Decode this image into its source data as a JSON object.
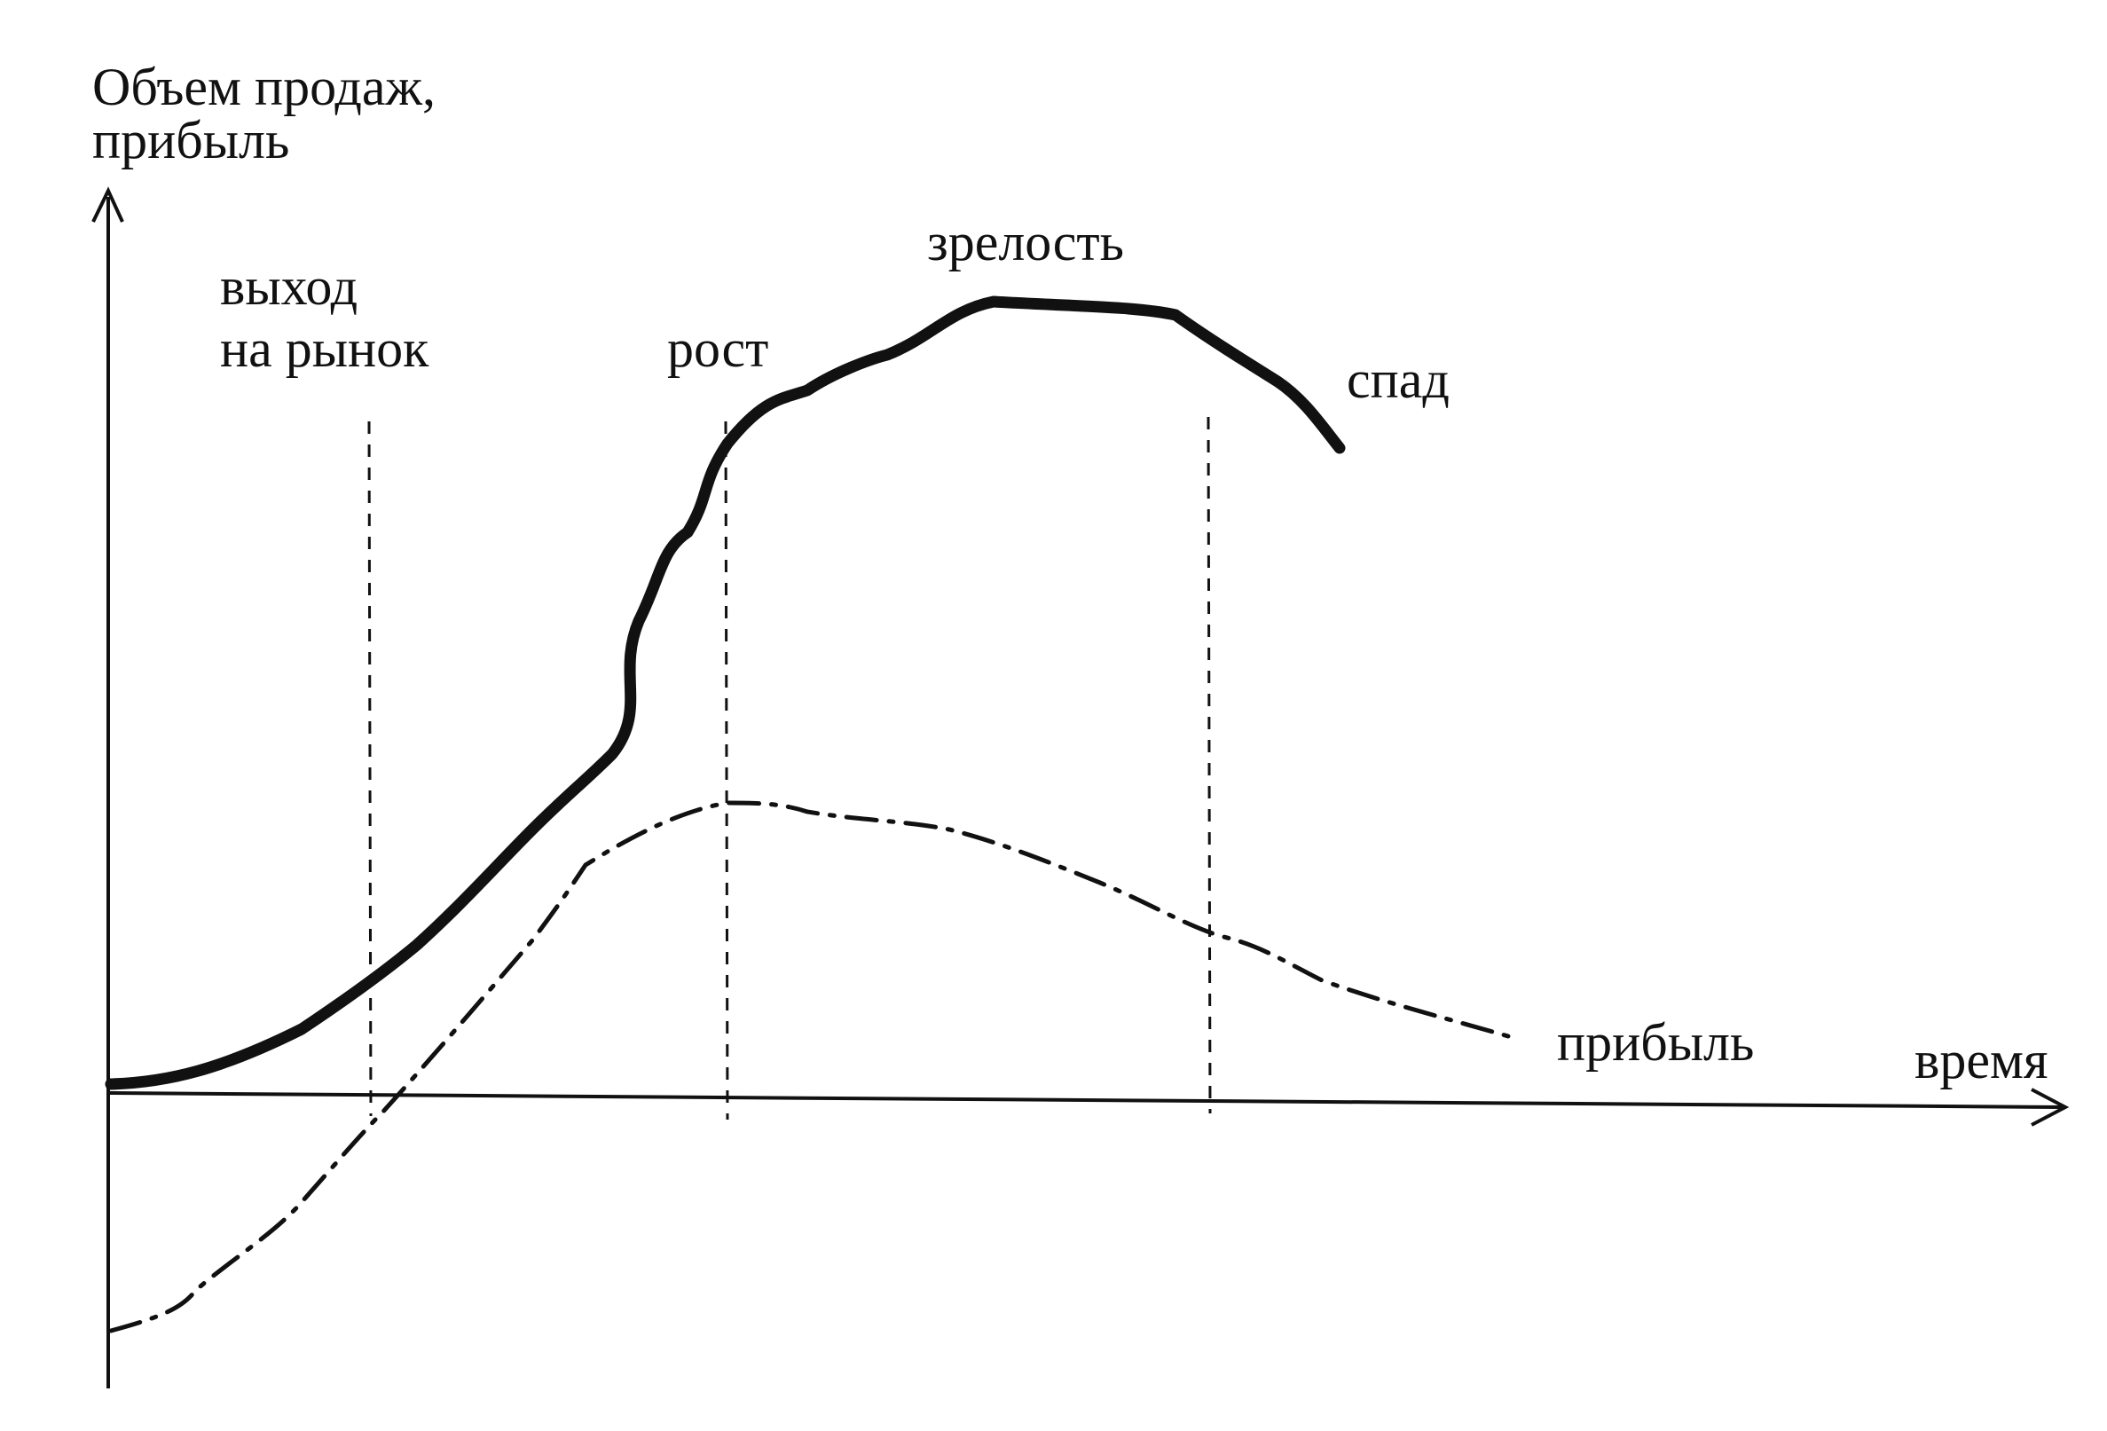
{
  "diagram": {
    "y_axis_label": [
      "Объем продаж,",
      "прибыль"
    ],
    "x_axis_label": "время",
    "stages": {
      "launch": [
        "выход",
        "на рынок"
      ],
      "growth": "рост",
      "maturity": "зрелость",
      "decline": "спад"
    },
    "profit_label": "прибыль"
  },
  "colors": {
    "ink": "#111111",
    "background": "#ffffff"
  }
}
